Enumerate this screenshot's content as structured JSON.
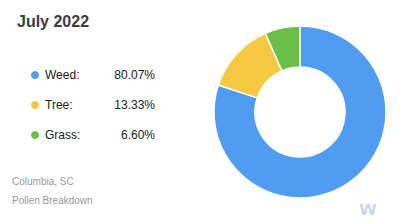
{
  "chart_data": {
    "type": "donut",
    "title": "July 2022",
    "categories": [
      "Weed:",
      "Tree:",
      "Grass:"
    ],
    "values": [
      80.07,
      13.33,
      6.6
    ],
    "value_labels": [
      "80.07%",
      "13.33%",
      "6.60%"
    ],
    "colors": [
      "#4f9cf0",
      "#f5c842",
      "#6abf4b"
    ],
    "legend": "left",
    "annotations": [
      "Columbia, SC",
      "Pollen Breakdown",
      "w"
    ]
  }
}
